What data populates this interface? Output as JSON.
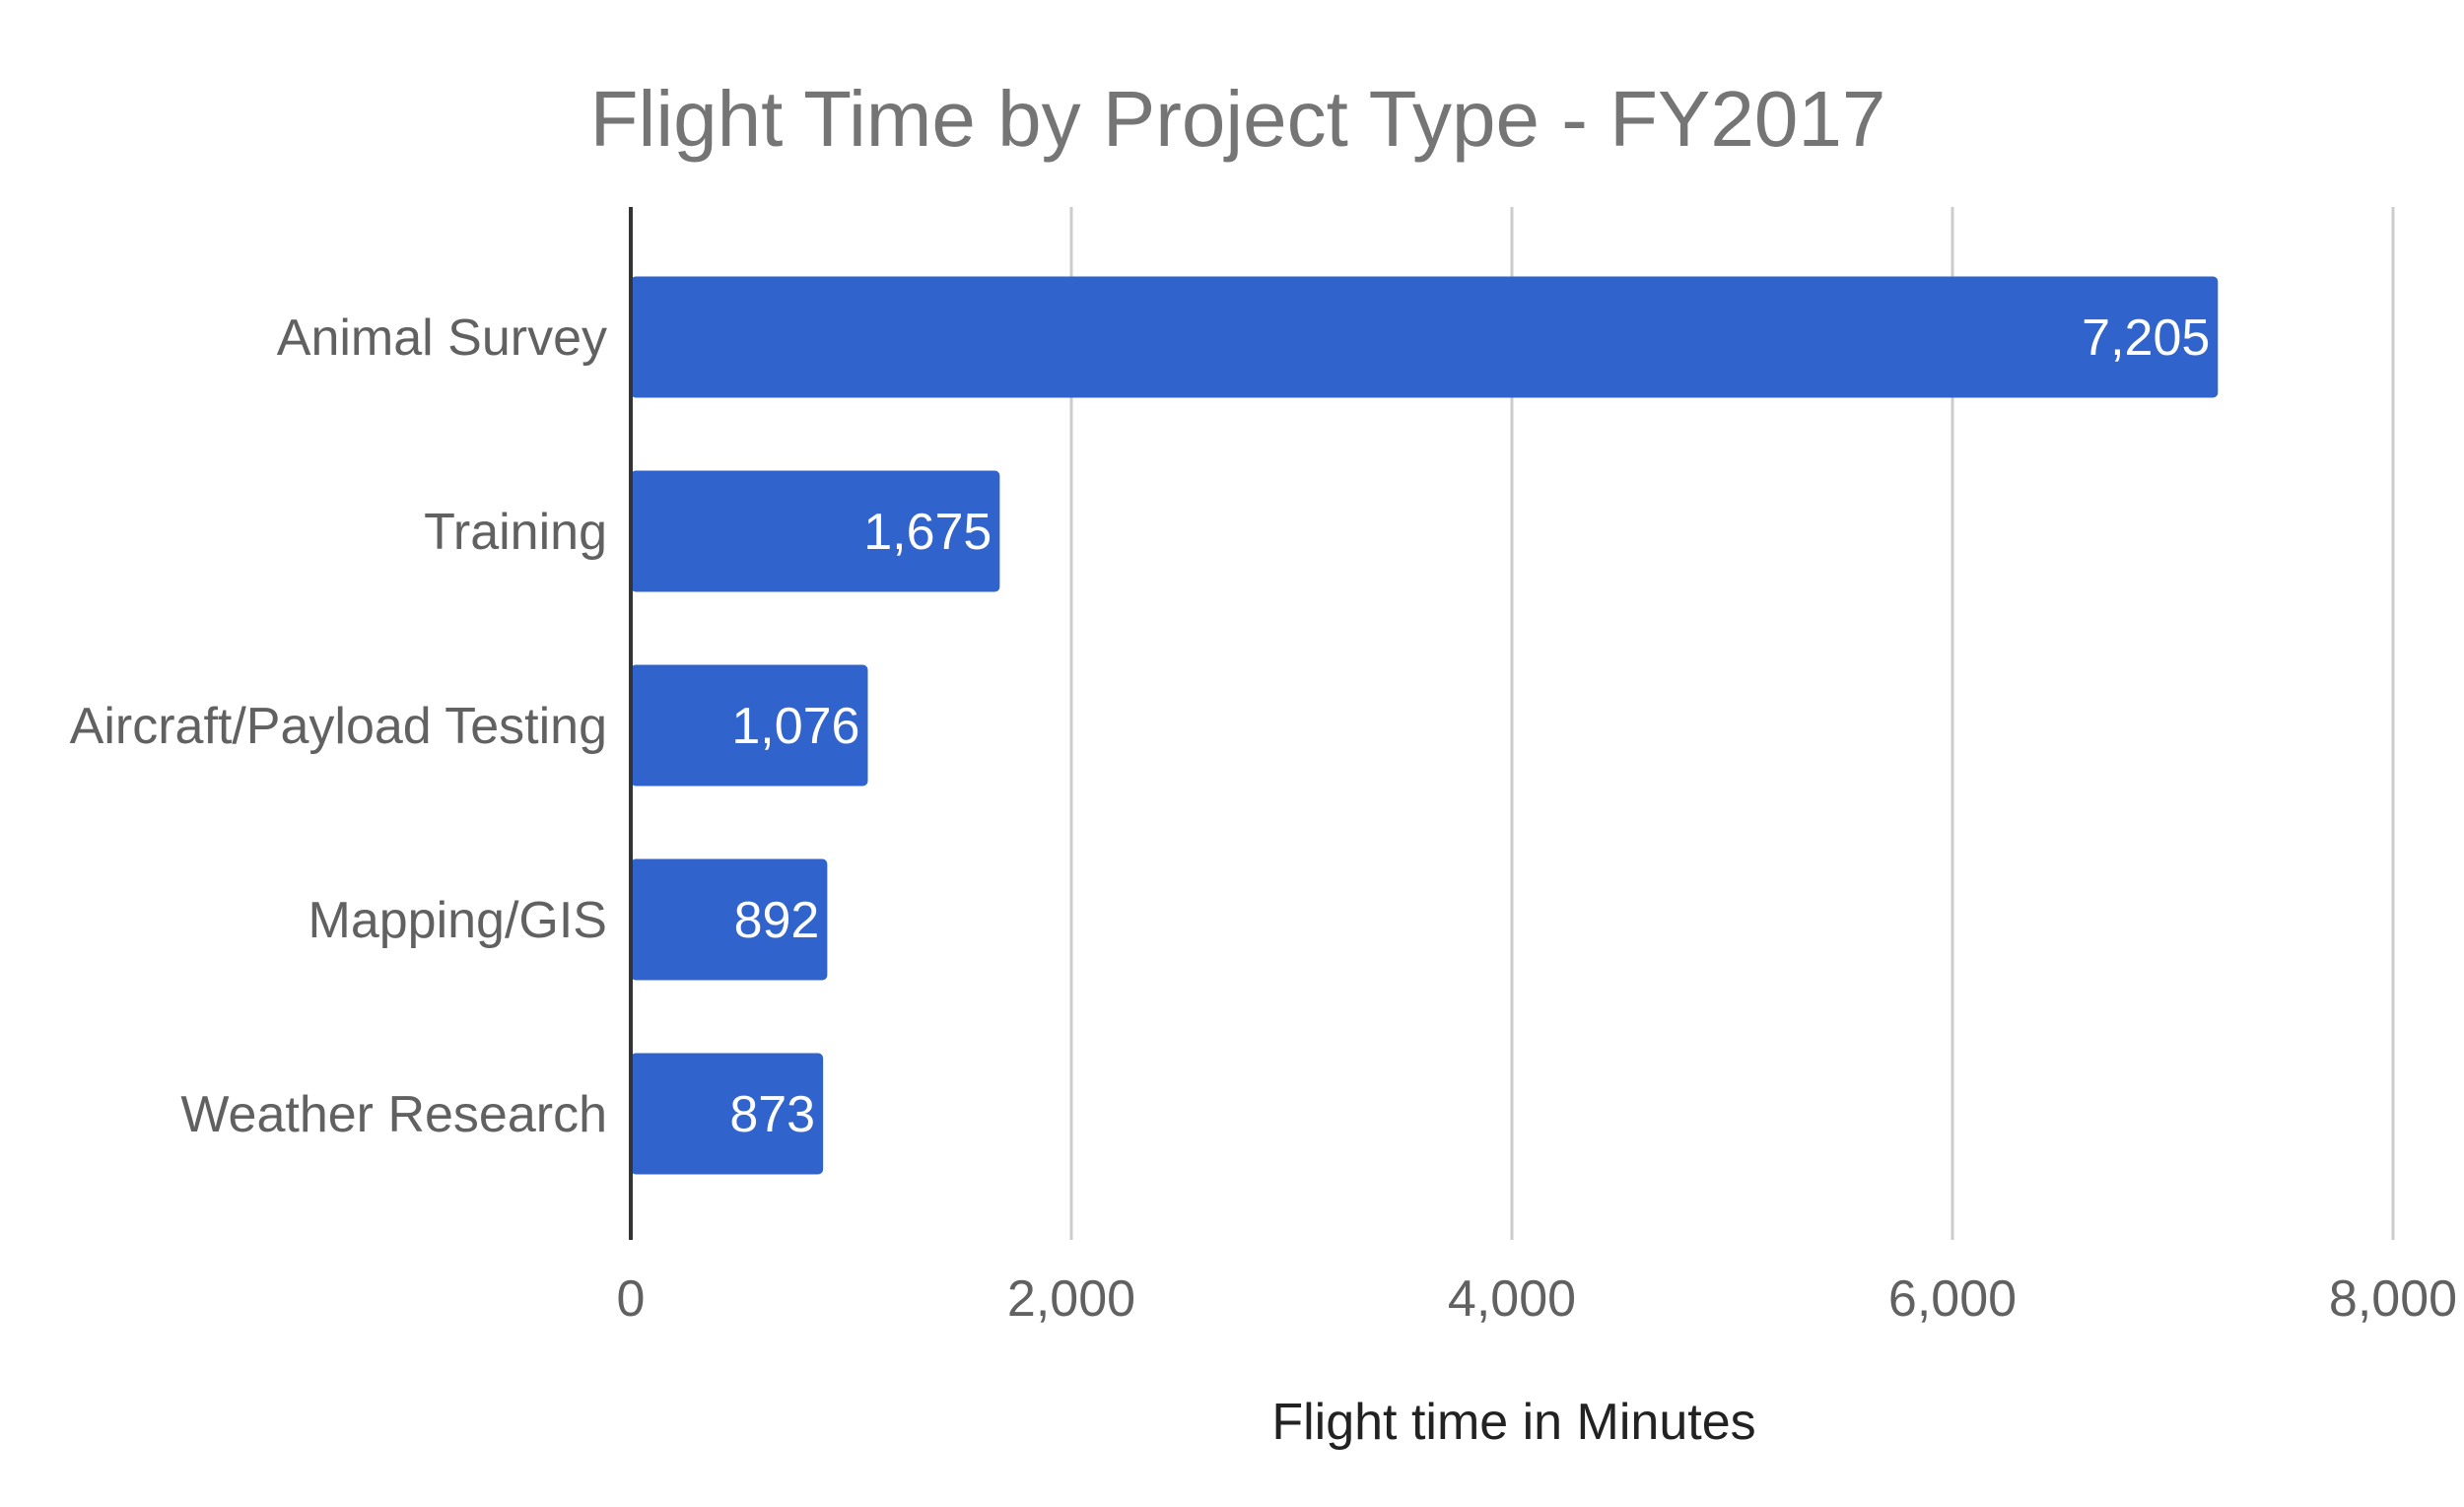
{
  "chart_data": {
    "type": "bar",
    "orientation": "horizontal",
    "title": "Flight Time by Project Type - FY2017",
    "xlabel": "Flight time in Minutes",
    "ylabel": "",
    "categories": [
      "Animal Survey",
      "Training",
      "Aircraft/Payload Testing",
      "Mapping/GIS",
      "Weather Research"
    ],
    "values": [
      7205,
      1675,
      1076,
      892,
      873
    ],
    "value_labels": [
      "7,205",
      "1,675",
      "1,076",
      "892",
      "873"
    ],
    "xlim": [
      0,
      8000
    ],
    "ticks": [
      0,
      2000,
      4000,
      6000,
      8000
    ],
    "tick_labels": [
      "0",
      "2,000",
      "4,000",
      "6,000",
      "8,000"
    ],
    "grid": true,
    "legend": "none",
    "bar_color": "#3063cc"
  }
}
